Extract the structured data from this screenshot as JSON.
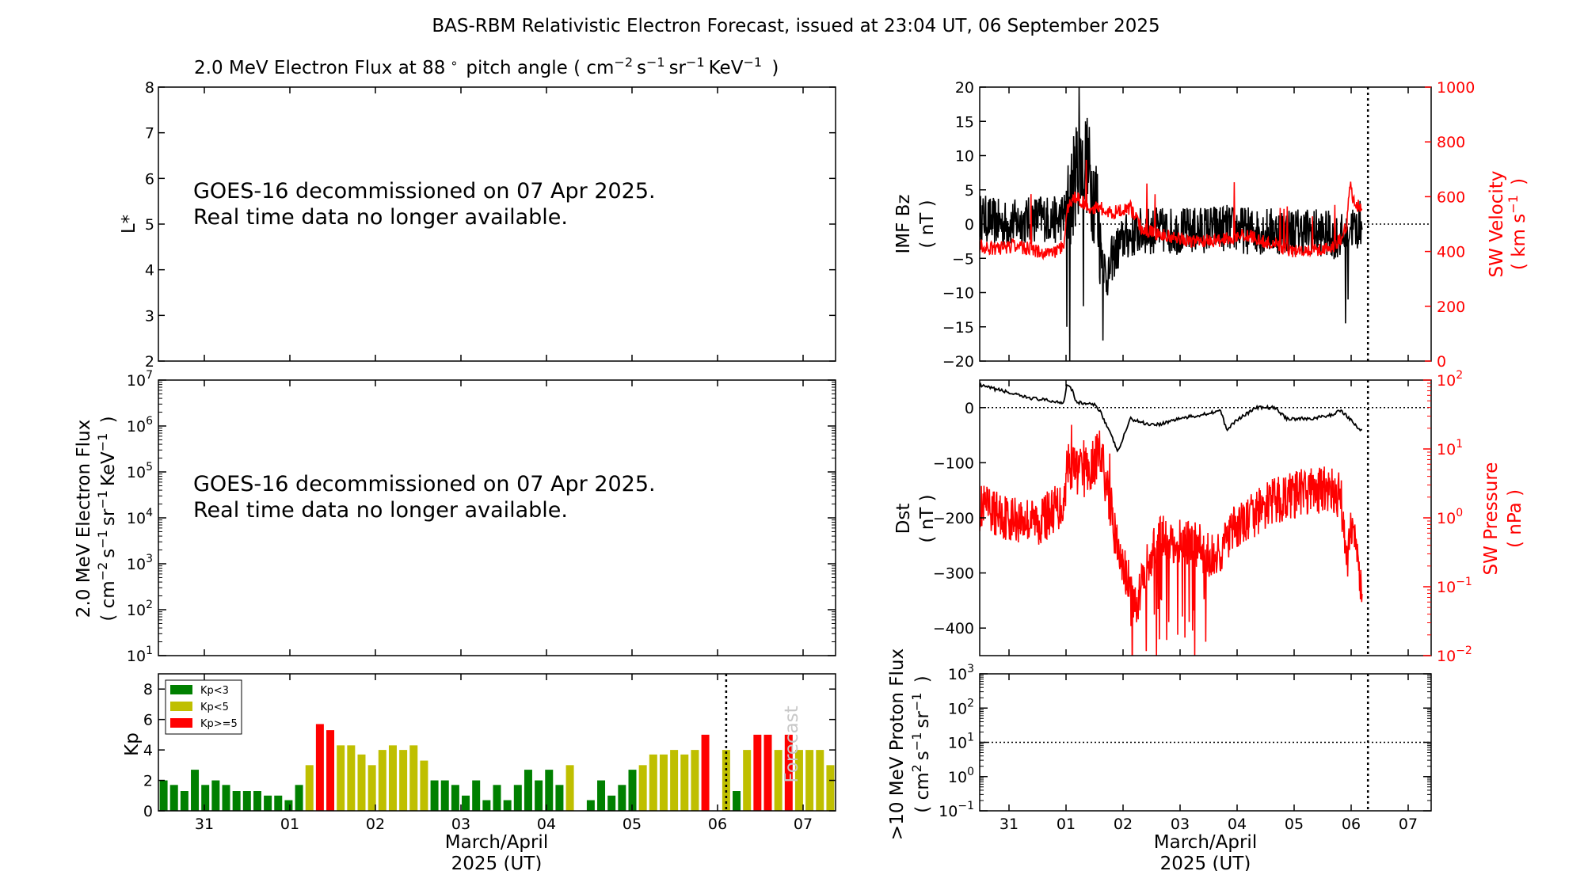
{
  "title": "BAS-RBM Relativistic Electron Forecast, issued at 23:04 UT, 06 September 2025",
  "chart_data": [
    {
      "id": "lstar",
      "type": "heatmap",
      "title": "2.0 MeV Electron Flux at 88",
      "title_unit": "pitch angle ( cm",
      "ylabel": "L*",
      "ylim": [
        2,
        8
      ],
      "yticks": [
        "8",
        "7",
        "6",
        "5",
        "4",
        "3",
        "2"
      ],
      "message_line1": "GOES-16 decommissioned on 07 Apr 2025.",
      "message_line2": "Real time data no longer available."
    },
    {
      "id": "flux",
      "type": "line",
      "ylabel_line1": "2.0 MeV Electron Flux",
      "ylabel_line2": "( cm",
      "ylim": [
        10,
        10000000
      ],
      "yscale": "log",
      "yticks_exp": [
        "7",
        "6",
        "5",
        "4",
        "3",
        "2",
        "1"
      ],
      "message_line1": "GOES-16 decommissioned on 07 Apr 2025.",
      "message_line2": "Real time data no longer available."
    },
    {
      "id": "kp",
      "type": "bar",
      "ylabel": "Kp",
      "ylim": [
        0,
        9
      ],
      "yticks": [
        "8",
        "6",
        "4",
        "2",
        "0"
      ],
      "xticks": [
        "31",
        "01",
        "02",
        "03",
        "04",
        "05",
        "06",
        "07"
      ],
      "xlabel_line1": "March/April",
      "xlabel_line2": "2025 (UT)",
      "forecast_label": "Forecast",
      "legend": [
        {
          "label": "Kp<3",
          "color": "#008000"
        },
        {
          "label": "Kp<5",
          "color": "#bfbf00"
        },
        {
          "label": "Kp>=5",
          "color": "#ff0000"
        }
      ],
      "values": [
        2.0,
        1.7,
        1.3,
        2.7,
        1.7,
        2.0,
        1.7,
        1.3,
        1.3,
        1.3,
        1.0,
        1.0,
        0.7,
        1.7,
        3.0,
        5.7,
        5.3,
        4.3,
        4.3,
        3.7,
        3.0,
        4.0,
        4.3,
        4.0,
        4.3,
        3.3,
        2.0,
        2.0,
        1.7,
        1.0,
        2.0,
        0.7,
        1.7,
        0.7,
        1.7,
        2.7,
        2.0,
        2.7,
        1.7,
        3.0,
        0,
        0.7,
        2.0,
        1.0,
        1.7,
        2.7,
        3.0,
        3.7,
        3.7,
        4.0,
        3.7,
        4.0,
        5.0,
        0,
        4.0,
        1.3,
        4.0,
        5.0,
        5.0,
        4.0,
        5.0,
        4.0,
        4.0,
        4.0,
        3.0
      ],
      "forecast_start_index": 55
    },
    {
      "id": "imf",
      "type": "line",
      "ylabel_line1": "IMF Bz",
      "ylabel_line2": "( nT )",
      "ylim": [
        -20,
        20
      ],
      "yticks": [
        "20",
        "15",
        "10",
        "5",
        "0",
        "−5",
        "−10",
        "−15",
        "−20"
      ],
      "y2label_line1": "SW Velocity",
      "y2label_line2": "( km s",
      "y2lim": [
        0,
        1000
      ],
      "y2ticks": [
        "1000",
        "800",
        "600",
        "400",
        "200",
        "0"
      ],
      "y2color": "#ff0000",
      "x_range_days": [
        0,
        7.5
      ],
      "bz_anchors": [
        [
          0,
          1
        ],
        [
          0.4,
          0
        ],
        [
          0.8,
          0.5
        ],
        [
          1.0,
          1
        ],
        [
          1.3,
          0.5
        ],
        [
          1.45,
          2
        ],
        [
          1.55,
          5
        ],
        [
          1.6,
          8
        ],
        [
          1.75,
          10
        ],
        [
          1.85,
          6
        ],
        [
          1.95,
          3
        ],
        [
          2.0,
          -2
        ],
        [
          2.1,
          -8
        ],
        [
          2.2,
          -5
        ],
        [
          2.4,
          -2
        ],
        [
          2.7,
          -1
        ],
        [
          3.0,
          -1
        ],
        [
          3.5,
          -1
        ],
        [
          4.0,
          -0.5
        ],
        [
          4.5,
          -1
        ],
        [
          5.0,
          -1
        ],
        [
          5.5,
          -1
        ],
        [
          5.8,
          -1.5
        ],
        [
          6.05,
          -2
        ],
        [
          6.15,
          0
        ],
        [
          6.25,
          -1
        ],
        [
          6.3,
          0
        ]
      ],
      "bz_noise": 3.5,
      "bz_spikes": [
        [
          1.45,
          -15
        ],
        [
          1.5,
          -20
        ],
        [
          1.65,
          20
        ],
        [
          1.72,
          -12
        ],
        [
          2.05,
          -17
        ],
        [
          2.15,
          -8
        ],
        [
          6.08,
          -14.5
        ],
        [
          6.12,
          -11
        ]
      ],
      "vsw_anchors": [
        [
          0,
          420
        ],
        [
          0.3,
          410
        ],
        [
          0.6,
          420
        ],
        [
          1.2,
          390
        ],
        [
          1.4,
          420
        ],
        [
          1.45,
          560
        ],
        [
          1.6,
          600
        ],
        [
          1.8,
          560
        ],
        [
          2.0,
          560
        ],
        [
          2.2,
          540
        ],
        [
          2.5,
          560
        ],
        [
          2.7,
          480
        ],
        [
          3.0,
          460
        ],
        [
          3.5,
          440
        ],
        [
          4.0,
          440
        ],
        [
          4.4,
          460
        ],
        [
          4.8,
          430
        ],
        [
          5.2,
          400
        ],
        [
          5.5,
          400
        ],
        [
          5.9,
          420
        ],
        [
          6.0,
          450
        ],
        [
          6.1,
          500
        ],
        [
          6.15,
          640
        ],
        [
          6.2,
          600
        ],
        [
          6.3,
          560
        ]
      ],
      "vsw_noise": 25,
      "forecast_x": 6.45
    },
    {
      "id": "dst",
      "type": "line",
      "ylabel_line1": "Dst",
      "ylabel_line2": "( nT )",
      "ylim": [
        -450,
        50
      ],
      "yticks": [
        "0",
        "−100",
        "−200",
        "−300",
        "−400"
      ],
      "y2label_line1": "SW Pressure",
      "y2label_line2": "( nPa )",
      "y2lim": [
        0.01,
        100
      ],
      "y2scale": "log",
      "y2ticks_exp": [
        "2",
        "1",
        "0",
        "−1",
        "−2"
      ],
      "y2color": "#ff0000",
      "dst_anchors": [
        [
          0,
          40
        ],
        [
          0.4,
          30
        ],
        [
          0.7,
          20
        ],
        [
          1.0,
          15
        ],
        [
          1.3,
          10
        ],
        [
          1.4,
          10
        ],
        [
          1.45,
          45
        ],
        [
          1.55,
          30
        ],
        [
          1.6,
          10
        ],
        [
          1.9,
          5
        ],
        [
          2.0,
          -5
        ],
        [
          2.3,
          -80
        ],
        [
          2.5,
          -20
        ],
        [
          2.8,
          -30
        ],
        [
          3.0,
          -30
        ],
        [
          3.3,
          -20
        ],
        [
          3.6,
          -15
        ],
        [
          4.0,
          -5
        ],
        [
          4.1,
          -40
        ],
        [
          4.3,
          -20
        ],
        [
          4.6,
          0
        ],
        [
          4.9,
          0
        ],
        [
          5.1,
          -20
        ],
        [
          5.5,
          -20
        ],
        [
          5.8,
          -15
        ],
        [
          6.0,
          -5
        ],
        [
          6.15,
          -20
        ],
        [
          6.3,
          -40
        ],
        [
          6.4,
          -40
        ]
      ],
      "psw_log_anchors": [
        [
          0,
          0.15
        ],
        [
          0.5,
          0.0
        ],
        [
          1.0,
          -0.05
        ],
        [
          1.2,
          0.1
        ],
        [
          1.4,
          0.2
        ],
        [
          1.45,
          0.8
        ],
        [
          1.6,
          0.7
        ],
        [
          1.8,
          0.6
        ],
        [
          1.95,
          0.9
        ],
        [
          2.0,
          1.0
        ],
        [
          2.1,
          0.5
        ],
        [
          2.3,
          -0.5
        ],
        [
          2.6,
          -1.3
        ],
        [
          2.8,
          -0.6
        ],
        [
          3.0,
          -0.3
        ],
        [
          3.3,
          -0.3
        ],
        [
          3.6,
          -0.4
        ],
        [
          3.9,
          -0.6
        ],
        [
          4.2,
          -0.2
        ],
        [
          4.5,
          0.0
        ],
        [
          4.8,
          0.2
        ],
        [
          5.1,
          0.3
        ],
        [
          5.5,
          0.4
        ],
        [
          5.8,
          0.4
        ],
        [
          6.0,
          0.3
        ],
        [
          6.1,
          -0.6
        ],
        [
          6.2,
          0.0
        ],
        [
          6.3,
          -0.8
        ],
        [
          6.35,
          -1.0
        ]
      ],
      "psw_noise": 0.35,
      "forecast_x": 6.45
    },
    {
      "id": "proton",
      "type": "line",
      "ylabel_line1": ">10 MeV Proton Flux",
      "ylabel_line2": "( cm",
      "ylim": [
        0.1,
        1000
      ],
      "yscale": "log",
      "yticks_exp": [
        "3",
        "2",
        "1",
        "0",
        "−1"
      ],
      "threshold": 10,
      "xticks": [
        "31",
        "01",
        "02",
        "03",
        "04",
        "05",
        "06",
        "07"
      ],
      "xlabel_line1": "March/April",
      "xlabel_line2": "2025 (UT)",
      "forecast_x": 6.45
    }
  ]
}
